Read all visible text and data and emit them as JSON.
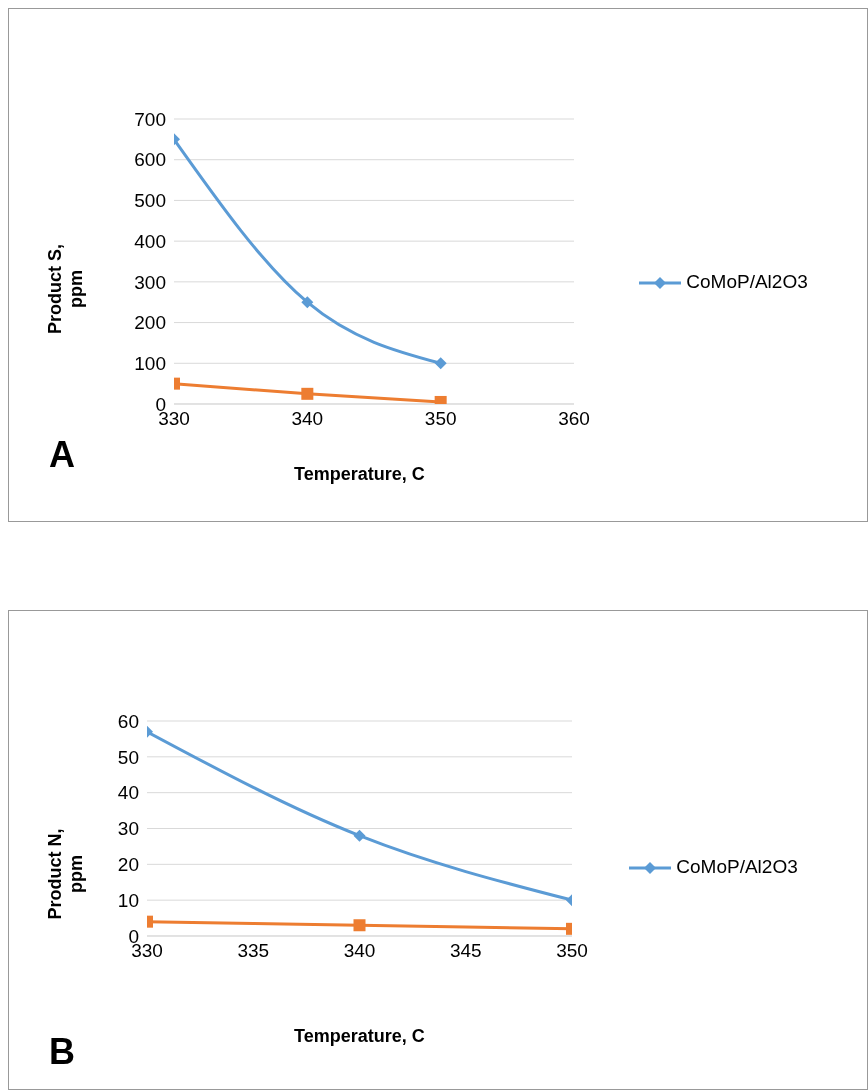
{
  "chart_data": [
    {
      "type": "line",
      "xlabel": "Temperature, C",
      "ylabel": "Product S, ppm",
      "x": [
        330,
        340,
        350
      ],
      "xlim": [
        330,
        360
      ],
      "xticks": [
        330,
        340,
        350,
        360
      ],
      "ylim": [
        0,
        700
      ],
      "yticks": [
        0,
        100,
        200,
        300,
        400,
        500,
        600,
        700
      ],
      "grid": "y",
      "legend": "right",
      "annotations": [
        "A"
      ],
      "series": [
        {
          "name": "CoMoP/Al2O3",
          "color": "#5b9bd5",
          "marker": "diamond",
          "values": [
            650,
            250,
            100
          ]
        },
        {
          "color": "#ed7d31",
          "marker": "square",
          "values": [
            50,
            25,
            5
          ]
        }
      ]
    },
    {
      "type": "line",
      "xlabel": "Temperature, C",
      "ylabel": "Product N, ppm",
      "x": [
        330,
        340,
        350
      ],
      "xlim": [
        330,
        350
      ],
      "xticks": [
        330,
        335,
        340,
        345,
        350
      ],
      "ylim": [
        0,
        60
      ],
      "yticks": [
        0,
        10,
        20,
        30,
        40,
        50,
        60
      ],
      "grid": "y",
      "legend": "right",
      "annotations": [
        "B"
      ],
      "series": [
        {
          "name": "CoMoP/Al2O3",
          "color": "#5b9bd5",
          "marker": "diamond",
          "values": [
            57,
            28,
            10
          ]
        },
        {
          "color": "#ed7d31",
          "marker": "square",
          "values": [
            4,
            3,
            2
          ]
        }
      ]
    }
  ]
}
